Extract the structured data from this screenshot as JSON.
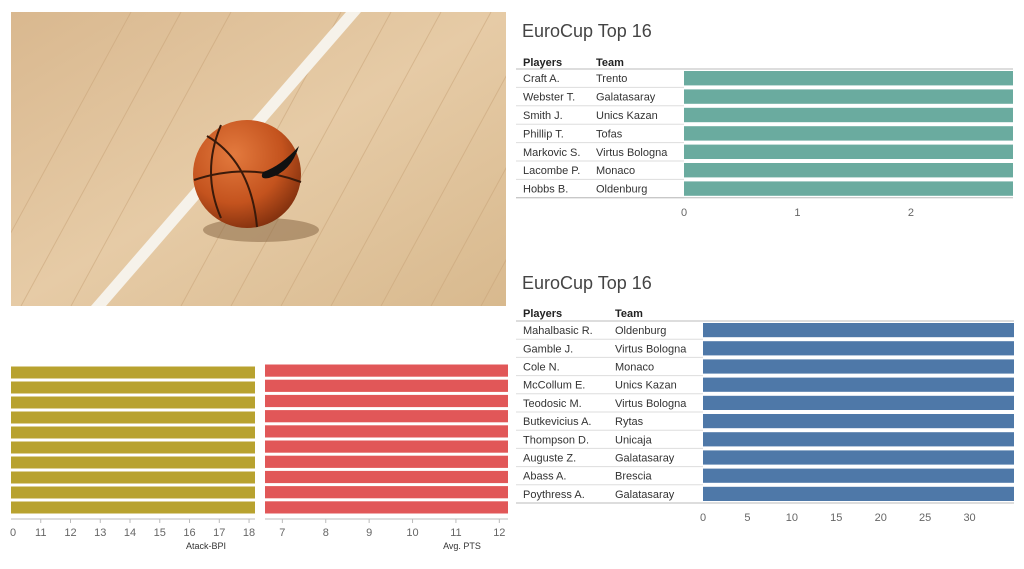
{
  "colors": {
    "teal": "#6aab9f",
    "blue": "#4e78a8",
    "gold": "#b8a22f",
    "red": "#e15758"
  },
  "photo": {
    "subject": "basketball on hardwood court",
    "icon": "basketball-photo"
  },
  "chart_data": [
    {
      "type": "bar",
      "title": "EuroCup Top 16",
      "orientation": "horizontal",
      "columns": [
        "Players",
        "Team"
      ],
      "rows": [
        {
          "player": "Craft A.",
          "team": "Trento"
        },
        {
          "player": "Webster T.",
          "team": "Galatasaray"
        },
        {
          "player": "Smith J.",
          "team": "Unics Kazan"
        },
        {
          "player": "Phillip T.",
          "team": "Tofas"
        },
        {
          "player": "Markovic S.",
          "team": "Virtus Bologna"
        },
        {
          "player": "Lacombe P.",
          "team": "Monaco"
        },
        {
          "player": "Hobbs B.",
          "team": "Oldenburg"
        }
      ],
      "values": [
        2.9,
        2.9,
        2.9,
        2.9,
        2.9,
        2.9,
        2.9
      ],
      "xlim": [
        0,
        2.9
      ],
      "xticks": [
        "0",
        "1",
        "2"
      ],
      "color": "#6aab9f"
    },
    {
      "type": "bar",
      "title": "EuroCup Top 16",
      "orientation": "horizontal",
      "columns": [
        "Players",
        "Team"
      ],
      "rows": [
        {
          "player": "Mahalbasic R.",
          "team": "Oldenburg"
        },
        {
          "player": "Gamble J.",
          "team": "Virtus Bologna"
        },
        {
          "player": "Cole N.",
          "team": "Monaco"
        },
        {
          "player": "McCollum E.",
          "team": "Unics Kazan"
        },
        {
          "player": "Teodosic M.",
          "team": "Virtus Bologna"
        },
        {
          "player": "Butkevicius A.",
          "team": "Rytas"
        },
        {
          "player": "Thompson D.",
          "team": "Unicaja"
        },
        {
          "player": "Auguste Z.",
          "team": "Galatasaray"
        },
        {
          "player": "Abass A.",
          "team": "Brescia"
        },
        {
          "player": "Poythress A.",
          "team": "Galatasaray"
        }
      ],
      "values": [
        35,
        35,
        35,
        35,
        35,
        35,
        35,
        35,
        35,
        35
      ],
      "xlim": [
        0,
        35
      ],
      "xticks": [
        "0",
        "5",
        "10",
        "15",
        "20",
        "25",
        "30"
      ],
      "color": "#4e78a8"
    },
    {
      "type": "bar",
      "orientation": "horizontal",
      "xlabel": "Atack-BPI",
      "values": [
        18.2,
        18.2,
        18.2,
        18.2,
        18.2,
        18.2,
        18.2,
        18.2,
        18.2,
        18.2
      ],
      "xlim": [
        10,
        18.2
      ],
      "xticks": [
        "11",
        "12",
        "13",
        "14",
        "15",
        "16",
        "17",
        "18"
      ],
      "first_tick_fragment": "0",
      "color": "#b8a22f"
    },
    {
      "type": "bar",
      "orientation": "horizontal",
      "xlabel": "Avg. PTS",
      "values": [
        12.2,
        12.2,
        12.2,
        12.2,
        12.2,
        12.2,
        12.2,
        12.2,
        12.2,
        12.2
      ],
      "xlim": [
        6.6,
        12.2
      ],
      "xticks": [
        "7",
        "8",
        "9",
        "10",
        "11",
        "12"
      ],
      "color": "#e15758"
    }
  ]
}
